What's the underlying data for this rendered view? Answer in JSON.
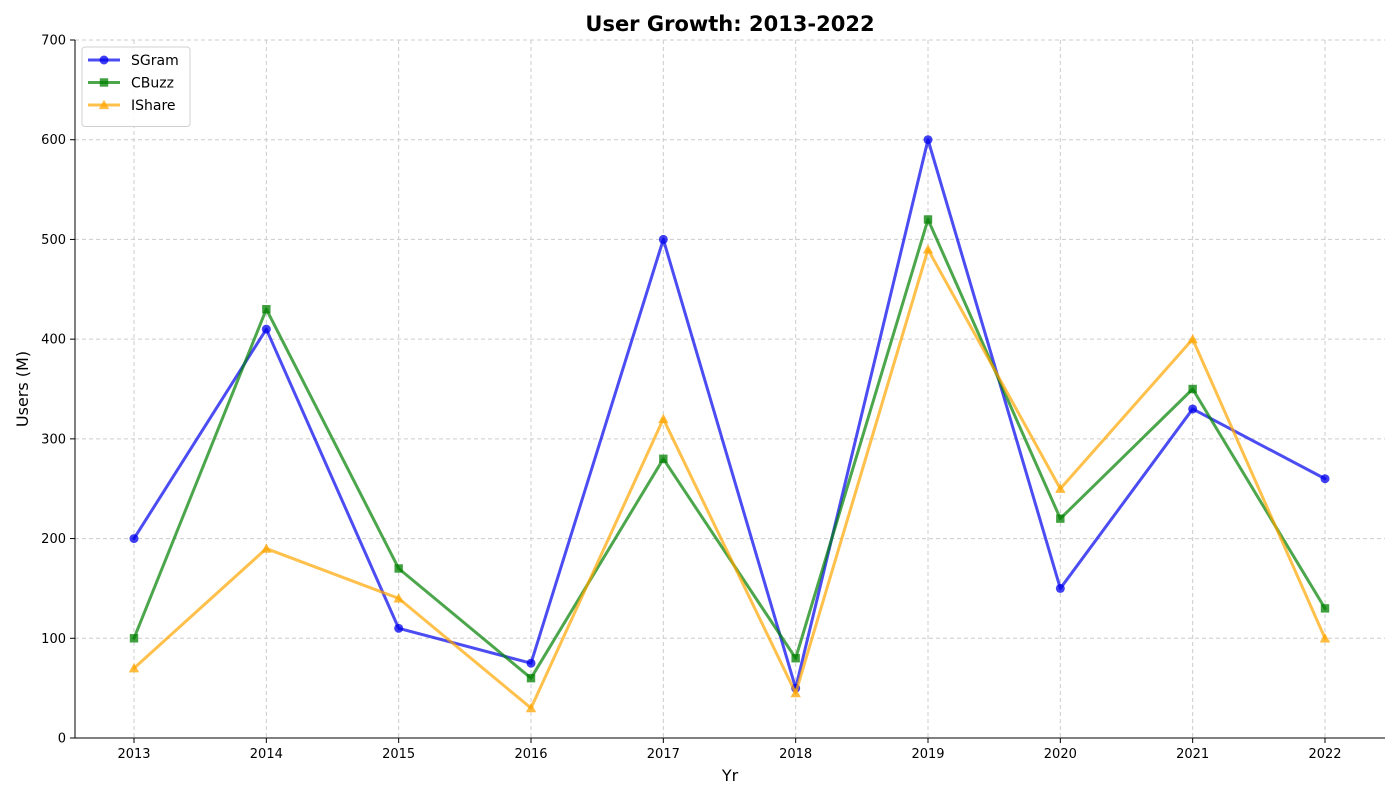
{
  "chart_data": {
    "type": "line",
    "title": "User Growth: 2013-2022",
    "xlabel": "Yr",
    "ylabel": "Users (M)",
    "categories": [
      "2013",
      "2014",
      "2015",
      "2016",
      "2017",
      "2018",
      "2019",
      "2020",
      "2021",
      "2022"
    ],
    "ylim": [
      0,
      700
    ],
    "yticks": [
      0,
      100,
      200,
      300,
      400,
      500,
      600,
      700
    ],
    "grid": true,
    "legend_position": "top-left",
    "series": [
      {
        "name": "SGram",
        "color": "#0000ee",
        "marker": "circle",
        "values": [
          200,
          410,
          110,
          75,
          500,
          50,
          600,
          150,
          330,
          260
        ]
      },
      {
        "name": "CBuzz",
        "color": "#008000",
        "marker": "square",
        "values": [
          100,
          430,
          170,
          60,
          280,
          80,
          520,
          220,
          350,
          130
        ]
      },
      {
        "name": "IShare",
        "color": "#ffa500",
        "marker": "triangle",
        "values": [
          70,
          190,
          140,
          30,
          320,
          45,
          490,
          250,
          400,
          100
        ]
      }
    ]
  }
}
